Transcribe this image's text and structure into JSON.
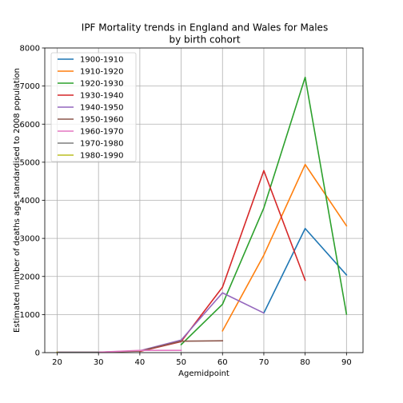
{
  "chart_data": {
    "type": "line",
    "title": [
      "IPF Mortality trends in England and Wales for Males",
      "by birth cohort"
    ],
    "xlabel": "Agemidpoint",
    "ylabel": "Estimated number of deaths age standardised to 2008 population",
    "xlim": [
      17,
      94
    ],
    "ylim": [
      0,
      8000
    ],
    "xticks": [
      20,
      30,
      40,
      50,
      60,
      70,
      80,
      90
    ],
    "yticks": [
      0,
      1000,
      2000,
      3000,
      4000,
      5000,
      6000,
      7000,
      8000
    ],
    "grid": true,
    "legend_position": "upper-left",
    "series": [
      {
        "name": "1900-1910",
        "color": "#1f77b4",
        "x": [
          70,
          80,
          90
        ],
        "y": [
          1040,
          3260,
          2040
        ]
      },
      {
        "name": "1910-1920",
        "color": "#ff7f0e",
        "x": [
          60,
          70,
          80,
          90
        ],
        "y": [
          570,
          2560,
          4940,
          3330
        ]
      },
      {
        "name": "1920-1930",
        "color": "#2ca02c",
        "x": [
          50,
          60,
          70,
          80,
          90
        ],
        "y": [
          210,
          1270,
          3800,
          7230,
          1010
        ]
      },
      {
        "name": "1930-1940",
        "color": "#d62728",
        "x": [
          40,
          50,
          60,
          70,
          80
        ],
        "y": [
          30,
          290,
          1720,
          4780,
          1900
        ]
      },
      {
        "name": "1940-1950",
        "color": "#9467bd",
        "x": [
          30,
          40,
          50,
          60,
          70
        ],
        "y": [
          10,
          50,
          330,
          1570,
          1040
        ]
      },
      {
        "name": "1950-1960",
        "color": "#8c564b",
        "x": [
          20,
          30,
          40,
          50,
          60
        ],
        "y": [
          10,
          10,
          40,
          300,
          310
        ]
      },
      {
        "name": "1960-1970",
        "color": "#e377c2",
        "x": [
          20,
          30,
          40,
          50
        ],
        "y": [
          10,
          10,
          60,
          60
        ]
      },
      {
        "name": "1970-1980",
        "color": "#7f7f7f",
        "x": [
          20,
          30
        ],
        "y": [
          10,
          10
        ]
      },
      {
        "name": "1980-1990",
        "color": "#bcbd22",
        "x": [
          20
        ],
        "y": [
          10
        ]
      }
    ]
  }
}
